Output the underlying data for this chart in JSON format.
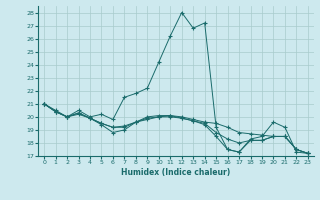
{
  "xlabel": "Humidex (Indice chaleur)",
  "bg_color": "#cde9ee",
  "grid_color": "#a8cccc",
  "line_color": "#1a6b6b",
  "xlim": [
    -0.5,
    23.5
  ],
  "ylim": [
    17,
    28.5
  ],
  "yticks": [
    17,
    18,
    19,
    20,
    21,
    22,
    23,
    24,
    25,
    26,
    27,
    28
  ],
  "xticks": [
    0,
    1,
    2,
    3,
    4,
    5,
    6,
    7,
    8,
    9,
    10,
    11,
    12,
    13,
    14,
    15,
    16,
    17,
    18,
    19,
    20,
    21,
    22,
    23
  ],
  "series": [
    [
      21.0,
      20.5,
      20.0,
      20.3,
      19.9,
      19.5,
      19.2,
      19.3,
      19.6,
      19.8,
      20.0,
      20.1,
      20.0,
      19.8,
      19.6,
      19.5,
      19.2,
      18.8,
      18.7,
      18.6,
      18.5,
      18.5,
      17.5,
      17.2
    ],
    [
      21.0,
      20.4,
      20.0,
      20.5,
      20.0,
      20.2,
      19.8,
      21.5,
      21.8,
      22.2,
      24.2,
      26.2,
      28.0,
      26.8,
      27.2,
      19.2,
      17.5,
      17.3,
      18.3,
      18.5,
      19.6,
      19.2,
      17.3,
      17.2
    ],
    [
      21.0,
      20.4,
      20.0,
      20.2,
      19.9,
      19.4,
      18.8,
      19.0,
      19.6,
      20.0,
      20.1,
      20.1,
      19.9,
      19.7,
      19.4,
      18.5,
      17.5,
      17.3,
      18.2,
      18.2,
      18.5,
      18.5,
      17.5,
      17.2
    ],
    [
      21.0,
      20.4,
      20.0,
      20.3,
      19.9,
      19.5,
      19.2,
      19.2,
      19.6,
      19.9,
      20.0,
      20.0,
      19.9,
      19.7,
      19.5,
      18.8,
      18.3,
      18.0,
      18.2,
      18.2,
      18.5,
      18.5,
      17.5,
      17.2
    ]
  ]
}
